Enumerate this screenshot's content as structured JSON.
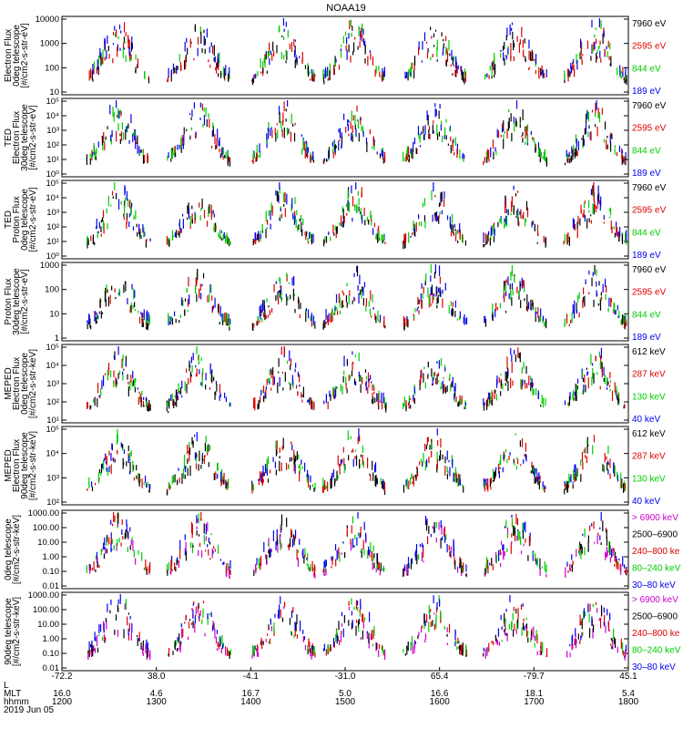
{
  "chart_data": {
    "type": "scatter",
    "title": "NOAA19",
    "date_label": "2019 Jun 05",
    "footer_rows": [
      {
        "label": "L",
        "values": [
          "",
          "",
          "",
          "",
          "",
          "",
          ""
        ]
      },
      {
        "label": "MLT",
        "values": [
          "16.0",
          "4.6",
          "16.7",
          "5.0",
          "16.6",
          "18.1",
          "5.4"
        ]
      },
      {
        "label": "hhmm",
        "values": [
          "1200",
          "1300",
          "1400",
          "1500",
          "1600",
          "1700",
          "1800"
        ]
      }
    ],
    "lat_ticks": [
      "-72.2",
      "38.0",
      "-4.1",
      "-31.0",
      "65.4",
      "-79.7",
      "45.1"
    ],
    "panels": [
      {
        "ylabel": [
          "Electron Flux",
          "0deg telescope",
          "[#/cm2-s-str-eV]"
        ],
        "yticks": [
          "10000",
          "1000",
          "100",
          "10"
        ],
        "legend": [
          {
            "text": "7960 eV",
            "color": "#000000"
          },
          {
            "text": "2595 eV",
            "color": "#dd0000"
          },
          {
            "text": "844 eV",
            "color": "#00cc00"
          },
          {
            "text": "189 eV",
            "color": "#0000ee"
          }
        ]
      },
      {
        "ylabel": [
          "TED",
          "Electron Flux",
          "30deg telescope",
          "[#/cm2-s-str-eV]"
        ],
        "yticks": [
          "10⁵",
          "10⁴",
          "10³",
          "10²",
          "10¹",
          "10⁰"
        ],
        "legend": [
          {
            "text": "7960 eV",
            "color": "#000000"
          },
          {
            "text": "2595 eV",
            "color": "#dd0000"
          },
          {
            "text": "844 eV",
            "color": "#00cc00"
          },
          {
            "text": "189 eV",
            "color": "#0000ee"
          }
        ]
      },
      {
        "ylabel": [
          "TED",
          "Proton Flux",
          "0deg telescope",
          "[#/cm2-s-str-eV]"
        ],
        "yticks": [
          "10⁵",
          "10⁴",
          "10³",
          "10²",
          "10¹",
          "10⁰"
        ],
        "legend": [
          {
            "text": "7960 eV",
            "color": "#000000"
          },
          {
            "text": "2595 eV",
            "color": "#dd0000"
          },
          {
            "text": "844 eV",
            "color": "#00cc00"
          },
          {
            "text": "189 eV",
            "color": "#0000ee"
          }
        ]
      },
      {
        "ylabel": [
          "Proton Flux",
          "30deg telescope",
          "[#/cm2-s-str-eV]"
        ],
        "yticks": [
          "1000",
          "100",
          "10",
          "1"
        ],
        "legend": [
          {
            "text": "7960 eV",
            "color": "#000000"
          },
          {
            "text": "2595 eV",
            "color": "#dd0000"
          },
          {
            "text": "844 eV",
            "color": "#00cc00"
          },
          {
            "text": "189 eV",
            "color": "#0000ee"
          }
        ]
      },
      {
        "ylabel": [
          "MEPED",
          "Electron Flux",
          "0deg telescope",
          "[#/cm2-s-str-keV]"
        ],
        "yticks": [
          "10⁵",
          "10⁴",
          "10³",
          "10²",
          "10¹"
        ],
        "legend": [
          {
            "text": "612 keV",
            "color": "#000000"
          },
          {
            "text": "287 keV",
            "color": "#dd0000"
          },
          {
            "text": "130 keV",
            "color": "#00cc00"
          },
          {
            "text": "40 keV",
            "color": "#0000ee"
          }
        ]
      },
      {
        "ylabel": [
          "MEPED",
          "Electron Flux",
          "90deg telescope",
          "[#/cm2-s-str-keV]"
        ],
        "yticks": [
          "10⁵",
          "10⁴",
          "10³",
          "10²"
        ],
        "legend": [
          {
            "text": "612 keV",
            "color": "#000000"
          },
          {
            "text": "287 keV",
            "color": "#dd0000"
          },
          {
            "text": "130 keV",
            "color": "#00cc00"
          },
          {
            "text": "40 keV",
            "color": "#0000ee"
          }
        ]
      },
      {
        "ylabel": [
          "0deg telescope",
          "[#/cm2-s-str-keV]"
        ],
        "yticks": [
          "1000.00",
          "100.00",
          "10.00",
          "1.00",
          "0.10",
          "0.01"
        ],
        "legend": [
          {
            "text": "> 6900 keV",
            "color": "#cc00cc"
          },
          {
            "text": "2500–6900",
            "color": "#000000"
          },
          {
            "text": "240–800 ke",
            "color": "#dd0000"
          },
          {
            "text": "80–240 keV",
            "color": "#00cc00"
          },
          {
            "text": "30–80 keV",
            "color": "#0000ee"
          }
        ]
      },
      {
        "ylabel": [
          "90deg telescope",
          "[#/cm2-s-str-keV]"
        ],
        "yticks": [
          "1000.00",
          "100.00",
          "10.00",
          "1.00",
          "0.10",
          "0.01"
        ],
        "legend": [
          {
            "text": "> 6900 keV",
            "color": "#cc00cc"
          },
          {
            "text": "2500–6900",
            "color": "#000000"
          },
          {
            "text": "240–800 ke",
            "color": "#dd0000"
          },
          {
            "text": "80–240 keV",
            "color": "#00cc00"
          },
          {
            "text": "30–80 keV",
            "color": "#0000ee"
          }
        ]
      }
    ],
    "x_range_hhmm": [
      "1200",
      "1800"
    ],
    "passes_hours": [
      12.6,
      13.45,
      14.35,
      15.1,
      15.95,
      16.8,
      17.65
    ]
  }
}
